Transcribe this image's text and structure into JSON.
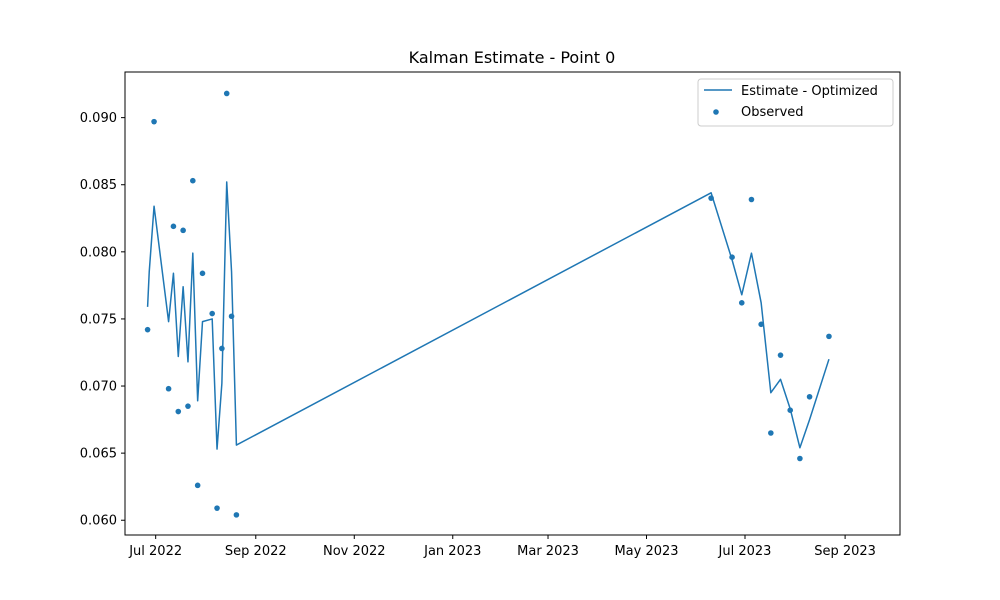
{
  "chart_data": {
    "type": "line+scatter",
    "title": "Kalman Estimate - Point 0",
    "xlabel": "",
    "ylabel": "",
    "x_type": "date",
    "xlim": [
      "2022-06-12",
      "2023-10-05"
    ],
    "ylim": [
      0.0589,
      0.0934
    ],
    "x_ticks": [
      {
        "date": "2022-07-01",
        "label": "Jul 2022"
      },
      {
        "date": "2022-09-01",
        "label": "Sep 2022"
      },
      {
        "date": "2022-11-01",
        "label": "Nov 2022"
      },
      {
        "date": "2023-01-01",
        "label": "Jan 2023"
      },
      {
        "date": "2023-03-01",
        "label": "Mar 2023"
      },
      {
        "date": "2023-05-01",
        "label": "May 2023"
      },
      {
        "date": "2023-07-01",
        "label": "Jul 2023"
      },
      {
        "date": "2023-09-01",
        "label": "Sep 2023"
      }
    ],
    "y_ticks": [
      {
        "value": 0.06,
        "label": "0.060"
      },
      {
        "value": 0.065,
        "label": "0.065"
      },
      {
        "value": 0.07,
        "label": "0.070"
      },
      {
        "value": 0.075,
        "label": "0.075"
      },
      {
        "value": 0.08,
        "label": "0.080"
      },
      {
        "value": 0.085,
        "label": "0.085"
      },
      {
        "value": 0.09,
        "label": "0.090"
      }
    ],
    "grid": false,
    "legend_position": "top-right",
    "series": [
      {
        "name": "Estimate - Optimized",
        "kind": "line",
        "color": "#1f77b4",
        "points": [
          {
            "x": "2022-06-26",
            "y": 0.0759
          },
          {
            "x": "2022-06-27",
            "y": 0.0785
          },
          {
            "x": "2022-06-30",
            "y": 0.0834
          },
          {
            "x": "2022-07-09",
            "y": 0.0748
          },
          {
            "x": "2022-07-12",
            "y": 0.0784
          },
          {
            "x": "2022-07-15",
            "y": 0.0722
          },
          {
            "x": "2022-07-18",
            "y": 0.0774
          },
          {
            "x": "2022-07-21",
            "y": 0.0718
          },
          {
            "x": "2022-07-24",
            "y": 0.0799
          },
          {
            "x": "2022-07-27",
            "y": 0.0689
          },
          {
            "x": "2022-07-30",
            "y": 0.0748
          },
          {
            "x": "2022-08-05",
            "y": 0.075
          },
          {
            "x": "2022-08-08",
            "y": 0.0653
          },
          {
            "x": "2022-08-11",
            "y": 0.0702
          },
          {
            "x": "2022-08-14",
            "y": 0.0852
          },
          {
            "x": "2022-08-17",
            "y": 0.0785
          },
          {
            "x": "2022-08-20",
            "y": 0.0656
          },
          {
            "x": "2023-06-10",
            "y": 0.0844
          },
          {
            "x": "2023-06-23",
            "y": 0.0794
          },
          {
            "x": "2023-06-29",
            "y": 0.0768
          },
          {
            "x": "2023-07-05",
            "y": 0.0799
          },
          {
            "x": "2023-07-11",
            "y": 0.0762
          },
          {
            "x": "2023-07-17",
            "y": 0.0695
          },
          {
            "x": "2023-07-23",
            "y": 0.0705
          },
          {
            "x": "2023-07-29",
            "y": 0.0683
          },
          {
            "x": "2023-08-04",
            "y": 0.0654
          },
          {
            "x": "2023-08-10",
            "y": 0.0675
          },
          {
            "x": "2023-08-22",
            "y": 0.072
          }
        ]
      },
      {
        "name": "Observed",
        "kind": "scatter",
        "color": "#1f77b4",
        "points": [
          {
            "x": "2022-06-26",
            "y": 0.0742
          },
          {
            "x": "2022-06-30",
            "y": 0.0897
          },
          {
            "x": "2022-07-09",
            "y": 0.0698
          },
          {
            "x": "2022-07-12",
            "y": 0.0819
          },
          {
            "x": "2022-07-15",
            "y": 0.0681
          },
          {
            "x": "2022-07-18",
            "y": 0.0816
          },
          {
            "x": "2022-07-21",
            "y": 0.0685
          },
          {
            "x": "2022-07-24",
            "y": 0.0853
          },
          {
            "x": "2022-07-27",
            "y": 0.0626
          },
          {
            "x": "2022-07-30",
            "y": 0.0784
          },
          {
            "x": "2022-08-05",
            "y": 0.0754
          },
          {
            "x": "2022-08-08",
            "y": 0.0609
          },
          {
            "x": "2022-08-11",
            "y": 0.0728
          },
          {
            "x": "2022-08-14",
            "y": 0.0918
          },
          {
            "x": "2022-08-17",
            "y": 0.0752
          },
          {
            "x": "2022-08-20",
            "y": 0.0604
          },
          {
            "x": "2023-06-10",
            "y": 0.084
          },
          {
            "x": "2023-06-23",
            "y": 0.0796
          },
          {
            "x": "2023-06-29",
            "y": 0.0762
          },
          {
            "x": "2023-07-05",
            "y": 0.0839
          },
          {
            "x": "2023-07-11",
            "y": 0.0746
          },
          {
            "x": "2023-07-17",
            "y": 0.0665
          },
          {
            "x": "2023-07-23",
            "y": 0.0723
          },
          {
            "x": "2023-07-29",
            "y": 0.0682
          },
          {
            "x": "2023-08-04",
            "y": 0.0646
          },
          {
            "x": "2023-08-10",
            "y": 0.0692
          },
          {
            "x": "2023-08-22",
            "y": 0.0737
          }
        ]
      }
    ]
  }
}
